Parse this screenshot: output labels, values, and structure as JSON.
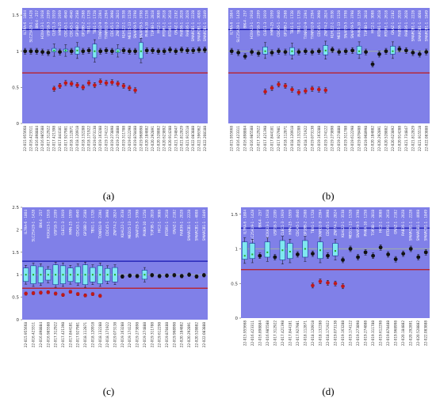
{
  "colors": {
    "background": "#8080e8",
    "upper_line": "#1515b0",
    "lower_line": "#c01818",
    "box": "#7fe8f0",
    "box_edge": "#1a3a9a",
    "mid_line": "#9aa8b0",
    "point": "#111111",
    "low_point": "#c01818",
    "median_green": "#22aa22"
  },
  "chart_data": [
    {
      "panel": "a",
      "type": "box-scatter",
      "caption": "(a)",
      "ylim": [
        0,
        1.6
      ],
      "yticks": [
        "0",
        "0.5",
        "1",
        "1.5"
      ],
      "reference_lines": [
        1.3,
        0.7
      ],
      "mid_line": 1.0,
      "labels": [
        "IL7RA-6 - 1804",
        "SLC25A19-1 - 1428",
        "BIK-4 - 257",
        "HOXA13-1 - 1918",
        "USP18-3 - 2209",
        "CLEC1-3 - 1919",
        "HMN-25 - 1959",
        "CDCA5-1 - 4940",
        "CDCA5-1 - 4940",
        "GP1BB-2 - 2588",
        "GP1BB-2 - 2588",
        "TBX1-1 - 1728",
        "TBX1-1 - 1728",
        "TXNRD2-9 - 2394",
        "TXNRD2-9 - 2394",
        "CDC45-1 - 3998",
        "ZNF74-2 - 2824",
        "KLHL22-1 - 3538",
        "MED15-13 - 1528",
        "SNAP29-5 - 3798",
        "SNAP29-5 - 3798",
        "PI4KA-10 - 1258",
        "TOP3B-1 - 2818",
        "HIC2-1 - 3088",
        "RTDR1-1 - 2618",
        "RTDR1-1 - 2618",
        "GNAZ-1 - 2182",
        "RAB36-1 - 2028",
        "RAB36-1 - 2028",
        "SMARCB1-1 - 2228",
        "SMARCB1-1 - 4008",
        "SMARCB1-1 - 1849"
      ],
      "x": [
        "22-015.955668",
        "22-016.423311",
        "22-016.898884",
        "22-016.985588",
        "22-017.312922",
        "22-017.421398",
        "22-017.844181",
        "22-017.927981",
        "22-018.112871",
        "22-018.120918",
        "22-018.132288",
        "22-018.171922",
        "22-019.073138",
        "22-019.163288",
        "22-019.174122",
        "22-019.273898",
        "22-019.274888",
        "22-019.311788",
        "22-019.612298",
        "22-019.878488",
        "22-019.968998",
        "22-020.184882",
        "22-020.292891",
        "22-020.528882",
        "22-020.623892",
        "22-020.914288",
        "22-021.734847",
        "22-021.812829",
        "22-021.915518",
        "22-022.083888",
        "22-022.596362",
        "22-022.208188"
      ],
      "groups": [
        {
          "type": "point",
          "y": 1.0
        },
        {
          "type": "point",
          "y": 1.0
        },
        {
          "type": "point",
          "y": 1.0
        },
        {
          "type": "point",
          "y": 0.99
        },
        {
          "type": "point",
          "y": 0.98
        },
        {
          "type": "box",
          "q1": 0.99,
          "q3": 1.04,
          "y": 1.01
        },
        {
          "type": "point",
          "y": 0.99
        },
        {
          "type": "box",
          "q1": 0.99,
          "q3": 1.03,
          "y": 1.01
        },
        {
          "type": "point",
          "y": 1.0
        },
        {
          "type": "box",
          "q1": 0.96,
          "q3": 1.06,
          "y": 1.01
        },
        {
          "type": "point",
          "y": 1.0
        },
        {
          "type": "point",
          "y": 1.01
        },
        {
          "type": "box",
          "q1": 0.91,
          "q3": 1.1,
          "y": 1.0
        },
        {
          "type": "point",
          "y": 1.0
        },
        {
          "type": "point",
          "y": 1.01
        },
        {
          "type": "point",
          "y": 1.0
        },
        {
          "type": "box",
          "q1": 0.98,
          "q3": 1.03,
          "y": 1.0
        },
        {
          "type": "point",
          "y": 1.01
        },
        {
          "type": "point",
          "y": 1.0
        },
        {
          "type": "point",
          "y": 1.0
        },
        {
          "type": "box",
          "q1": 0.9,
          "q3": 1.12,
          "y": 1.0
        },
        {
          "type": "point",
          "y": 1.01
        },
        {
          "type": "point",
          "y": 1.01
        },
        {
          "type": "point",
          "y": 1.0
        },
        {
          "type": "point",
          "y": 1.0
        },
        {
          "type": "point",
          "y": 1.02
        },
        {
          "type": "point",
          "y": 1.0
        },
        {
          "type": "point",
          "y": 1.02
        },
        {
          "type": "point",
          "y": 1.01
        },
        {
          "type": "point",
          "y": 1.01
        },
        {
          "type": "point",
          "y": 1.02
        },
        {
          "type": "point",
          "y": 1.02
        }
      ],
      "low_series": [
        0.48,
        0.52,
        0.56,
        0.55,
        0.53,
        0.5,
        0.56,
        0.53,
        0.58,
        0.56,
        0.57,
        0.55,
        0.52,
        0.49,
        0.46
      ],
      "low_start_index": 5
    },
    {
      "panel": "b",
      "type": "box-scatter",
      "caption": "(b)",
      "ylim": [
        0,
        1.6
      ],
      "yticks": [],
      "reference_lines": [
        1.3,
        0.7
      ],
      "mid_line": 1.0,
      "labels": [
        "IL7RA-6 - 1804",
        "SLC25A19-1 - 1428",
        "BIK-4 - 257",
        "HOXA13-1 - 1918",
        "USP18-3 - 2209",
        "CLEC1-3 - 1919",
        "HMN-25 - 1959",
        "CDCA5-1 - 4940",
        "GP1BB-2 - 2588",
        "TBX1-1 - 1728",
        "TBX1-1 - 1728",
        "TXNRD2-9 - 2394",
        "TXNRD2-9 - 2394",
        "CDC45-1 - 3998",
        "ZNF74-2 - 2824",
        "KLHL22-1 - 3538",
        "MED15-13 - 1528",
        "SNAP29-5 - 3798",
        "SNAP29-5 - 3798",
        "PI4KA-10 - 1258",
        "TOP3B-1 - 2818",
        "HIC2-1 - 3088",
        "RTDR1-1 - 2618",
        "RTDR1-1 - 2618",
        "GNAZ-1 - 2182",
        "RAB36-1 - 2028",
        "RAB36-1 - 2028",
        "SMARCB1-1 - 2228",
        "SMARCB1-1 - 4008",
        "SMARCB1-1 - 1849"
      ],
      "x": [
        "22-015.955668",
        "22-016.423311",
        "22-016.898884",
        "22-016.985588",
        "22-017.312922",
        "22-017.421398",
        "22-017.844181",
        "22-017.927981",
        "22-018.112871",
        "22-018.120918",
        "22-018.132288",
        "22-018.171922",
        "22-019.073138",
        "22-019.163288",
        "22-019.174122",
        "22-019.273898",
        "22-019.274888",
        "22-019.311788",
        "22-019.612298",
        "22-019.878488",
        "22-019.968998",
        "22-020.184882",
        "22-020.292891",
        "22-020.528882",
        "22-020.623892",
        "22-020.914288",
        "22-021.734847",
        "22-021.812829",
        "22-021.915518",
        "22-022.083888"
      ],
      "groups": [
        {
          "type": "point",
          "y": 1.0
        },
        {
          "type": "point",
          "y": 0.98
        },
        {
          "type": "point",
          "y": 0.93
        },
        {
          "type": "point",
          "y": 0.99
        },
        {
          "type": "point",
          "y": 0.97
        },
        {
          "type": "box",
          "q1": 0.96,
          "q3": 1.06,
          "y": 1.0
        },
        {
          "type": "point",
          "y": 0.98
        },
        {
          "type": "point",
          "y": 1.0
        },
        {
          "type": "point",
          "y": 0.99
        },
        {
          "type": "box",
          "q1": 0.95,
          "q3": 1.05,
          "y": 1.0
        },
        {
          "type": "point",
          "y": 0.99
        },
        {
          "type": "point",
          "y": 1.0
        },
        {
          "type": "point",
          "y": 0.99
        },
        {
          "type": "point",
          "y": 1.0
        },
        {
          "type": "box",
          "q1": 0.95,
          "q3": 1.08,
          "y": 1.01
        },
        {
          "type": "point",
          "y": 1.02
        },
        {
          "type": "point",
          "y": 0.99
        },
        {
          "type": "point",
          "y": 1.0
        },
        {
          "type": "point",
          "y": 1.01
        },
        {
          "type": "box",
          "q1": 0.96,
          "q3": 1.07,
          "y": 1.0
        },
        {
          "type": "point",
          "y": 0.99
        },
        {
          "type": "point",
          "y": 0.82
        },
        {
          "type": "point",
          "y": 0.96
        },
        {
          "type": "point",
          "y": 1.0
        },
        {
          "type": "box",
          "q1": 0.96,
          "q3": 1.07,
          "y": 1.0
        },
        {
          "type": "point",
          "y": 1.03
        },
        {
          "type": "point",
          "y": 1.01
        },
        {
          "type": "point",
          "y": 0.98
        },
        {
          "type": "point",
          "y": 0.96
        },
        {
          "type": "point",
          "y": 0.99
        }
      ],
      "low_series": [
        0.44,
        0.49,
        0.54,
        0.52,
        0.47,
        0.43,
        0.45,
        0.48,
        0.47,
        0.46
      ],
      "low_start_index": 5
    },
    {
      "panel": "c",
      "type": "box-scatter",
      "caption": "(c)",
      "ylim": [
        0,
        2.5
      ],
      "yticks": [
        "0",
        "0.5",
        "1",
        "1.5",
        "2",
        "2.5"
      ],
      "reference_lines": [
        1.3,
        0.7
      ],
      "mid_line": 1.0,
      "labels": [
        "IL7RA-6 - 1804",
        "SLC25A19-1 - 1428",
        "BIK-4 - 257",
        "HOXA13-1 - 1918",
        "USP18-3 - 2209",
        "CLEC1-3 - 1919",
        "HMN-25 - 1959",
        "CDCA5-1 - 4940",
        "GP1BB-2 - 2588",
        "TBX1-1 - 1728",
        "TXNRD2-9 - 2394",
        "CDC45-1 - 3998",
        "ZNF74-2 - 2824",
        "KLHL22-1 - 3538",
        "MED15-13 - 1528",
        "SNAP29-5 - 3798",
        "PI4KA-10 - 1258",
        "TOP3B-1 - 2818",
        "HIC2-1 - 3088",
        "RTDR1-1 - 2618",
        "GNAZ-1 - 2182",
        "RAB36-1 - 2028",
        "SMARCB1-1 - 2228",
        "SMARCB1-1 - 4008",
        "SMARCB1-1 - 1849"
      ],
      "x": [
        "22-015.955668",
        "22-016.423311",
        "22-016.898884",
        "22-016.985588",
        "22-017.312922",
        "22-017.421398",
        "22-017.844181",
        "22-017.927981",
        "22-018.112871",
        "22-018.120918",
        "22-018.132288",
        "22-018.171922",
        "22-019.073138",
        "22-019.163288",
        "22-019.174122",
        "22-019.273898",
        "22-019.274888",
        "22-019.311788",
        "22-019.612298",
        "22-019.878488",
        "22-019.968998",
        "22-020.184882",
        "22-020.292891",
        "22-020.528882",
        "22-022.083888"
      ],
      "groups": [
        {
          "type": "box",
          "q1": 0.85,
          "q3": 1.15,
          "y": 1.0
        },
        {
          "type": "box",
          "q1": 0.8,
          "q3": 1.2,
          "y": 1.0
        },
        {
          "type": "box",
          "q1": 0.82,
          "q3": 1.18,
          "y": 1.0
        },
        {
          "type": "box",
          "q1": 0.88,
          "q3": 1.12,
          "y": 1.0
        },
        {
          "type": "box",
          "q1": 0.78,
          "q3": 1.22,
          "y": 1.0
        },
        {
          "type": "box",
          "q1": 0.8,
          "q3": 1.2,
          "y": 1.0
        },
        {
          "type": "box",
          "q1": 0.85,
          "q3": 1.15,
          "y": 1.0
        },
        {
          "type": "box",
          "q1": 0.82,
          "q3": 1.18,
          "y": 1.0
        },
        {
          "type": "box",
          "q1": 0.78,
          "q3": 1.22,
          "y": 1.0
        },
        {
          "type": "box",
          "q1": 0.84,
          "q3": 1.16,
          "y": 1.0
        },
        {
          "type": "box",
          "q1": 0.8,
          "q3": 1.2,
          "y": 1.0
        },
        {
          "type": "box",
          "q1": 0.86,
          "q3": 1.14,
          "y": 1.0
        },
        {
          "type": "box",
          "q1": 0.84,
          "q3": 1.16,
          "y": 1.0
        },
        {
          "type": "point",
          "y": 0.96
        },
        {
          "type": "point",
          "y": 0.98
        },
        {
          "type": "point",
          "y": 0.97
        },
        {
          "type": "box",
          "q1": 0.9,
          "q3": 1.1,
          "y": 1.0
        },
        {
          "type": "point",
          "y": 0.99
        },
        {
          "type": "point",
          "y": 0.97
        },
        {
          "type": "point",
          "y": 0.98
        },
        {
          "type": "point",
          "y": 0.99
        },
        {
          "type": "point",
          "y": 0.97
        },
        {
          "type": "point",
          "y": 1.0
        },
        {
          "type": "point",
          "y": 0.96
        },
        {
          "type": "point",
          "y": 0.99
        }
      ],
      "low_series": [
        0.58,
        0.59,
        0.6,
        0.61,
        0.58,
        0.55,
        0.62,
        0.57,
        0.54,
        0.57,
        0.53
      ],
      "low_start_index": 0
    },
    {
      "panel": "d",
      "type": "box-scatter",
      "caption": "(d)",
      "ylim": [
        0,
        1.6
      ],
      "yticks": [
        "0",
        "0.5",
        "1",
        "1.5"
      ],
      "reference_lines": [
        1.3,
        0.7
      ],
      "mid_line": 1.0,
      "labels": [
        "IL7RA-6 - 1804",
        "SLC25A19-1 - 1428",
        "BIK-4 - 257",
        "HOXA13-1 - 1918",
        "USP18-3 - 2209",
        "CLEC1-3 - 1919",
        "HMN-25 - 1959",
        "CDCA5-1 - 4940",
        "GP1BB-2 - 2588",
        "TBX1-1 - 1728",
        "TXNRD2-9 - 2394",
        "CDC45-1 - 3998",
        "ZNF74-2 - 2824",
        "KLHL22-1 - 3538",
        "MED15-13 - 1528",
        "SNAP29-5 - 3798",
        "PI4KA-10 - 1258",
        "TOP3B-1 - 2818",
        "HIC2-1 - 3088",
        "RTDR1-1 - 2618",
        "GNAZ-1 - 2182",
        "RAB36-1 - 2028",
        "SMARCB1-1 - 2228",
        "SMARCB1-1 - 4008",
        "SMARCB1-1 - 1849"
      ],
      "x": [
        "22-015.955668",
        "22-016.423311",
        "22-016.898884",
        "22-016.985588",
        "22-017.312922",
        "22-017.421398",
        "22-017.844181",
        "22-017.927981",
        "22-018.112871",
        "22-018.120918",
        "22-018.132288",
        "22-018.171922",
        "22-019.073138",
        "22-019.163288",
        "22-019.174122",
        "22-019.273898",
        "22-019.274888",
        "22-019.311788",
        "22-019.612298",
        "22-019.878488",
        "22-019.968998",
        "22-020.184882",
        "22-020.292891",
        "22-020.528882",
        "22-022.083888"
      ],
      "groups": [
        {
          "type": "box",
          "q1": 0.85,
          "q3": 1.1,
          "y": 0.9
        },
        {
          "type": "box",
          "q1": 0.86,
          "q3": 1.08,
          "y": 0.92
        },
        {
          "type": "point",
          "y": 0.9
        },
        {
          "type": "box",
          "q1": 0.88,
          "q3": 1.1,
          "y": 0.95
        },
        {
          "type": "point",
          "y": 0.88
        },
        {
          "type": "box",
          "q1": 0.84,
          "q3": 1.12,
          "y": 0.98
        },
        {
          "type": "box",
          "q1": 0.86,
          "q3": 1.08,
          "y": 0.96
        },
        {
          "type": "point",
          "y": 0.92
        },
        {
          "type": "box",
          "q1": 0.88,
          "q3": 1.12,
          "y": 1.0
        },
        {
          "type": "point",
          "y": 0.93
        },
        {
          "type": "box",
          "q1": 0.86,
          "q3": 1.1,
          "y": 0.98
        },
        {
          "type": "point",
          "y": 0.9
        },
        {
          "type": "box",
          "q1": 0.9,
          "q3": 1.08,
          "y": 0.97
        },
        {
          "type": "point",
          "y": 0.84
        },
        {
          "type": "point",
          "y": 1.0
        },
        {
          "type": "point",
          "y": 0.88
        },
        {
          "type": "point",
          "y": 0.95
        },
        {
          "type": "point",
          "y": 0.9
        },
        {
          "type": "point",
          "y": 1.02
        },
        {
          "type": "point",
          "y": 0.92
        },
        {
          "type": "point",
          "y": 0.85
        },
        {
          "type": "point",
          "y": 0.93
        },
        {
          "type": "point",
          "y": 1.0
        },
        {
          "type": "point",
          "y": 0.88
        },
        {
          "type": "point",
          "y": 0.95
        }
      ],
      "low_series": [
        0.47,
        0.53,
        0.51,
        0.5,
        0.46
      ],
      "low_start_index": 9
    }
  ]
}
